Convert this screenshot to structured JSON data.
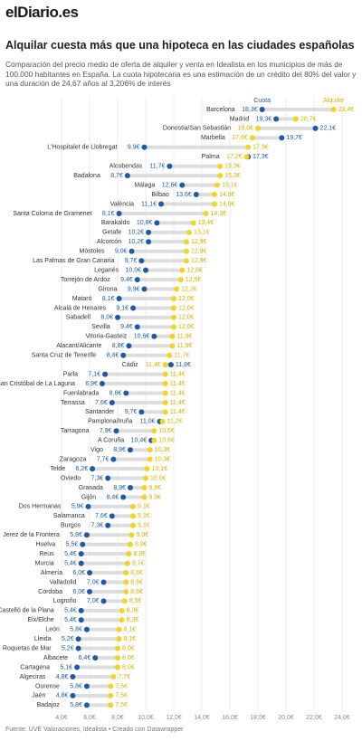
{
  "chart_data": {
    "type": "range-dot",
    "logo": "elDiario.es",
    "title": "Alquilar cuesta más que una hipoteca en las ciudades españolas",
    "subtitle": "Comparación del precio medio de oferta de alquiler y venta en Idealista en los municipios de más de 100.000 habitantes en España. La cuota hipotecaria es una estimación de un crédito del 80% del valor y una duración de 24,67 años al 3,206% de interés",
    "source": "Fuente: UVE Valoraciones, Idealista • Creado con Datawrapper",
    "categories": [
      "Barcelona",
      "Madrid",
      "Donostia/San Sebastián",
      "Marbella",
      "L'Hospitalet de Llobregat",
      "Palma",
      "Alcobendas",
      "Badalona",
      "Málaga",
      "Bilbao",
      "València",
      "Santa Coloma de Gramenet",
      "Barakaldo",
      "Getafe",
      "Alcorcón",
      "Móstoles",
      "Las Palmas de Gran Canaria",
      "Leganés",
      "Torrejón de Ardoz",
      "Girona",
      "Mataró",
      "Alcalá de Henares",
      "Sabadell",
      "Sevilla",
      "Vitoria-Gasteiz",
      "Alacant/Alicante",
      "Santa Cruz de Tenerife",
      "Cádiz",
      "Parla",
      "San Cristóbal de La Laguna",
      "Fuenlabrada",
      "Terrassa",
      "Santander",
      "Pamplona/Iruña",
      "Tarragona",
      "A Coruña",
      "Vigo",
      "Zaragoza",
      "Telde",
      "Oviedo",
      "Granada",
      "Gijón",
      "Dos Hermanas",
      "Salamanca",
      "Burgos",
      "Jerez de la Frontera",
      "Huelva",
      "Reus",
      "Murcia",
      "Almería",
      "Valladolid",
      "Córdoba",
      "Logroño",
      "Castelló de la Plana",
      "Elx/Elche",
      "León",
      "Lleida",
      "Roquetas de Mar",
      "Albacete",
      "Cartagena",
      "Algeciras",
      "Ourense",
      "Jaén",
      "Badajoz"
    ],
    "series": [
      {
        "name": "Cuota",
        "color": "#1f5aa6",
        "label_color": "#1f5aa6",
        "values": [
          18.3,
          19.3,
          22.1,
          19.7,
          9.9,
          17.3,
          11.7,
          8.7,
          12.6,
          13.6,
          11.1,
          8.1,
          10.8,
          10.2,
          10.2,
          9.0,
          9.7,
          10.0,
          9.4,
          9.9,
          8.1,
          9.1,
          8.0,
          9.4,
          10.6,
          8.8,
          8.4,
          11.8,
          7.1,
          6.9,
          8.6,
          7.6,
          9.7,
          11.0,
          7.9,
          10.4,
          8.9,
          7.7,
          6.2,
          7.3,
          8.9,
          8.4,
          5.9,
          7.6,
          7.3,
          5.8,
          5.5,
          5.4,
          5.4,
          6.0,
          7.0,
          6.0,
          7.0,
          5.4,
          5.4,
          5.8,
          5.2,
          5.2,
          6.4,
          5.1,
          4.8,
          5.8,
          4.8,
          5.8
        ],
        "value_labels": [
          "18,3€",
          "19,3€",
          "22,1€",
          "19,7€",
          "9,9€",
          "17,3€",
          "11,7€",
          "8,7€",
          "12,6€",
          "13,6€",
          "11,1€",
          "8,1€",
          "10,8€",
          "10,2€",
          "10,2€",
          "9,0€",
          "9,7€",
          "10,0€",
          "9,4€",
          "9,9€",
          "8,1€",
          "9,1€",
          "8,0€",
          "9,4€",
          "10,6€",
          "8,8€",
          "8,4€",
          "11,8€",
          "7,1€",
          "6,9€",
          "8,6€",
          "7,6€",
          "9,7€",
          "11,0€",
          "7,9€",
          "10,4€",
          "8,9€",
          "7,7€",
          "6,2€",
          "7,3€",
          "8,9€",
          "8,4€",
          "5,9€",
          "7,6€",
          "7,3€",
          "5,8€",
          "5,5€",
          "5,4€",
          "5,4€",
          "6,0€",
          "7,0€",
          "6,0€",
          "7,0€",
          "5,4€",
          "5,4€",
          "5,8€",
          "5,2€",
          "5,2€",
          "6,4€",
          "5,1€",
          "4,8€",
          "5,8€",
          "4,8€",
          "5,8€"
        ]
      },
      {
        "name": "Alquiler",
        "color": "#f2d426",
        "label_color": "#d4b400",
        "values": [
          23.4,
          20.7,
          18.0,
          17.6,
          17.3,
          17.2,
          15.3,
          15.3,
          15.1,
          14.9,
          14.9,
          14.3,
          13.4,
          13.1,
          12.9,
          12.9,
          12.9,
          12.6,
          12.5,
          12.2,
          12.0,
          12.0,
          12.0,
          12.0,
          11.9,
          11.9,
          11.7,
          11.4,
          11.4,
          11.4,
          11.4,
          11.4,
          11.4,
          11.2,
          10.6,
          10.6,
          10.3,
          10.3,
          10.1,
          10.0,
          9.9,
          9.9,
          9.1,
          9.1,
          9.1,
          9.0,
          8.9,
          8.8,
          8.7,
          8.6,
          8.6,
          8.6,
          8.5,
          8.3,
          8.3,
          8.1,
          8.1,
          8.0,
          8.0,
          8.0,
          7.7,
          7.5,
          7.5,
          7.5
        ],
        "value_labels": [
          "23,4€",
          "20,7€",
          "18,0€",
          "17,6€",
          "17,3€",
          "17,2€",
          "15,3€",
          "15,3€",
          "15,1€",
          "14,9€",
          "14,9€",
          "14,3€",
          "13,4€",
          "13,1€",
          "12,9€",
          "12,9€",
          "12,9€",
          "12,6€",
          "12,5€",
          "12,2€",
          "12,0€",
          "12,0€",
          "12,0€",
          "12,0€",
          "11,9€",
          "11,9€",
          "11,7€",
          "11,4€",
          "11,4€",
          "11,4€",
          "11,4€",
          "11,4€",
          "11,4€",
          "11,2€",
          "10,6€",
          "10,6€",
          "10,3€",
          "10,3€",
          "10,1€",
          "10,0€",
          "9,9€",
          "9,9€",
          "9,1€",
          "9,1€",
          "9,1€",
          "9,0€",
          "8,9€",
          "8,8€",
          "8,7€",
          "8,6€",
          "8,6€",
          "8,6€",
          "8,5€",
          "8,3€",
          "8,3€",
          "8,1€",
          "8,1€",
          "8,0€",
          "8,0€",
          "8,0€",
          "7,7€",
          "7,5€",
          "7,5€",
          "7,5€"
        ]
      }
    ],
    "xlim": [
      4,
      24
    ],
    "xticks": [
      {
        "value": 4,
        "label": "4,0€"
      },
      {
        "value": 6,
        "label": "6,0€"
      },
      {
        "value": 8,
        "label": "8,0€"
      },
      {
        "value": 10,
        "label": "10,0€"
      },
      {
        "value": 12,
        "label": "12,0€"
      },
      {
        "value": 14,
        "label": "14,0€"
      },
      {
        "value": 16,
        "label": "16,0€"
      },
      {
        "value": 18,
        "label": "18,0€"
      },
      {
        "value": 20,
        "label": "20,0€"
      },
      {
        "value": 22,
        "label": "22,0€"
      },
      {
        "value": 24,
        "label": "24,0€"
      }
    ],
    "grid": true
  }
}
